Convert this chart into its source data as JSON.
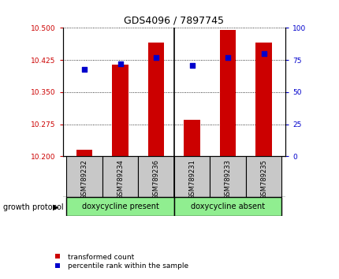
{
  "title": "GDS4096 / 7897745",
  "samples": [
    "GSM789232",
    "GSM789234",
    "GSM789236",
    "GSM789231",
    "GSM789233",
    "GSM789235"
  ],
  "red_values": [
    10.215,
    10.415,
    10.465,
    10.285,
    10.495,
    10.465
  ],
  "blue_values": [
    68,
    72,
    77,
    71,
    77,
    80
  ],
  "ylim_left": [
    10.2,
    10.5
  ],
  "ylim_right": [
    0,
    100
  ],
  "yticks_left": [
    10.2,
    10.275,
    10.35,
    10.425,
    10.5
  ],
  "yticks_right": [
    0,
    25,
    50,
    75,
    100
  ],
  "group1_label": "doxycycline present",
  "group2_label": "doxycycline absent",
  "group_header": "growth protocol",
  "bar_color": "#cc0000",
  "dot_color": "#0000cc",
  "bar_base": 10.2,
  "bar_width": 0.45,
  "legend_red": "transformed count",
  "legend_blue": "percentile rank within the sample",
  "label_box_color": "#c8c8c8",
  "group_box_color": "#90ee90"
}
